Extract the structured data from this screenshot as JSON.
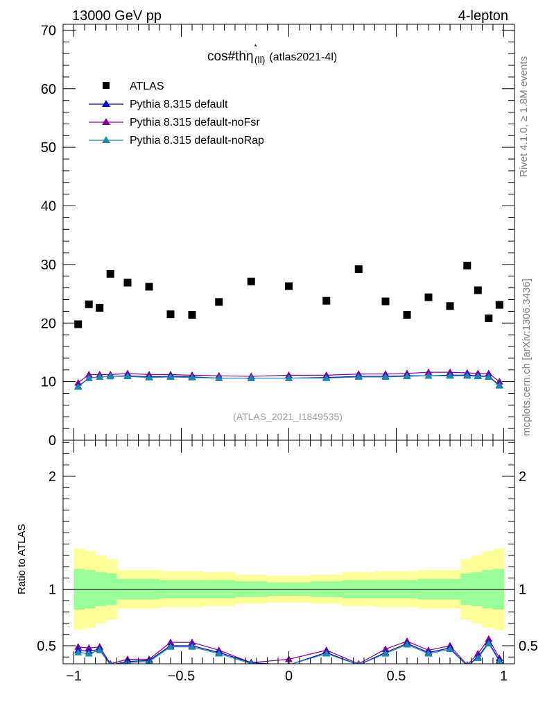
{
  "header": {
    "energy_label": "13000 GeV pp",
    "process_label": "4-lepton"
  },
  "plot_title": {
    "main": "cos#thη",
    "sup": "*",
    "sub": "(ll)",
    "suffix": "(atlas2021-4l)"
  },
  "watermark": "(ATLAS_2021_I1849535)",
  "side_labels": {
    "rivet": "Rivet 4.1.0, ≥ 1.8M events",
    "mcplots": "mcplots.cern.ch [arXiv:1306.3436]"
  },
  "colors": {
    "data": "#000000",
    "default": "#0000cc",
    "noFsr": "#8000a0",
    "noRap": "#1a8ab0",
    "band_inner": "#99ff99",
    "band_outer": "#ffff99"
  },
  "chart_data": [
    {
      "type": "scatter",
      "panel": "main",
      "xlim": [
        -1.05,
        1.05
      ],
      "ylim": [
        0,
        71
      ],
      "yticks": [
        0,
        10,
        20,
        30,
        40,
        50,
        60,
        70
      ],
      "ytick_labels": [
        "0",
        "10",
        "20",
        "30",
        "40",
        "50",
        "60",
        "70"
      ],
      "legend": {
        "placement": "top-left",
        "entries": [
          {
            "key": "data",
            "label": "ATLAS"
          },
          {
            "key": "default",
            "label": "Pythia 8.315 default"
          },
          {
            "key": "noFsr",
            "label": "Pythia 8.315 default-noFsr"
          },
          {
            "key": "noRap",
            "label": "Pythia 8.315 default-noRap"
          }
        ]
      },
      "x": [
        -0.98,
        -0.93,
        -0.88,
        -0.83,
        -0.75,
        -0.65,
        -0.55,
        -0.45,
        -0.325,
        -0.175,
        0.0,
        0.175,
        0.325,
        0.45,
        0.55,
        0.65,
        0.75,
        0.83,
        0.88,
        0.93,
        0.98
      ],
      "series": [
        {
          "key": "data",
          "name": "ATLAS",
          "values": [
            19.8,
            23.2,
            22.6,
            28.4,
            26.9,
            26.2,
            21.5,
            21.4,
            23.6,
            27.1,
            26.3,
            23.8,
            29.2,
            23.7,
            21.4,
            24.4,
            22.9,
            29.8,
            25.6,
            20.8,
            23.1
          ]
        },
        {
          "key": "default",
          "name": "Pythia 8.315 default",
          "values": [
            9.2,
            10.6,
            10.8,
            10.9,
            11.0,
            10.8,
            10.9,
            10.8,
            10.6,
            10.6,
            10.6,
            10.7,
            10.9,
            10.9,
            11.0,
            11.0,
            11.1,
            11.1,
            11.0,
            10.9,
            9.4
          ]
        },
        {
          "key": "noFsr",
          "name": "Pythia 8.315 default-noFsr",
          "values": [
            9.8,
            11.2,
            11.2,
            11.2,
            11.4,
            11.2,
            11.2,
            11.1,
            11.0,
            10.9,
            11.1,
            11.1,
            11.3,
            11.3,
            11.4,
            11.6,
            11.6,
            11.5,
            11.4,
            11.4,
            10.0
          ]
        },
        {
          "key": "noRap",
          "name": "Pythia 8.315 default-noRap",
          "values": [
            9.1,
            10.6,
            10.8,
            10.9,
            10.9,
            10.7,
            10.8,
            10.7,
            10.6,
            10.6,
            10.6,
            10.6,
            10.8,
            10.8,
            10.9,
            11.0,
            11.0,
            11.0,
            10.9,
            10.8,
            9.3
          ]
        }
      ]
    },
    {
      "type": "line",
      "panel": "ratio",
      "ylabel": "Ratio to ATLAS",
      "xlim": [
        -1.05,
        1.05
      ],
      "ylim": [
        0.34,
        2.32
      ],
      "xticks": [
        -1,
        -0.5,
        0,
        0.5,
        1
      ],
      "xtick_labels": [
        "−1",
        "−0.5",
        "0",
        "0.5",
        "1"
      ],
      "yticks": [
        0.5,
        1,
        2
      ],
      "ytick_labels": [
        "0.5",
        "1",
        "2"
      ],
      "reference_line": 1,
      "band_edges": [
        -1.0,
        -0.95,
        -0.9,
        -0.85,
        -0.8,
        -0.7,
        -0.6,
        -0.5,
        -0.4,
        -0.25,
        -0.1,
        0.1,
        0.25,
        0.4,
        0.5,
        0.6,
        0.7,
        0.8,
        0.85,
        0.9,
        0.95,
        1.0
      ],
      "band_inner": [
        0.18,
        0.17,
        0.15,
        0.14,
        0.09,
        0.09,
        0.08,
        0.08,
        0.08,
        0.07,
        0.06,
        0.07,
        0.08,
        0.08,
        0.08,
        0.09,
        0.09,
        0.14,
        0.15,
        0.17,
        0.18
      ],
      "band_outer": [
        0.36,
        0.34,
        0.3,
        0.27,
        0.17,
        0.17,
        0.16,
        0.16,
        0.15,
        0.13,
        0.12,
        0.13,
        0.15,
        0.16,
        0.16,
        0.17,
        0.17,
        0.27,
        0.3,
        0.34,
        0.36
      ],
      "x": [
        -0.98,
        -0.93,
        -0.88,
        -0.83,
        -0.75,
        -0.65,
        -0.55,
        -0.45,
        -0.325,
        -0.175,
        0.0,
        0.175,
        0.325,
        0.45,
        0.55,
        0.65,
        0.75,
        0.83,
        0.88,
        0.93,
        0.98
      ],
      "series": [
        {
          "key": "default",
          "name": "Pythia 8.315 default",
          "values": [
            0.46,
            0.45,
            0.47,
            0.33,
            0.36,
            0.37,
            0.5,
            0.5,
            0.44,
            0.35,
            0.33,
            0.44,
            0.33,
            0.44,
            0.52,
            0.44,
            0.48,
            0.32,
            0.4,
            0.53,
            0.37
          ]
        },
        {
          "key": "noFsr",
          "name": "Pythia 8.315 default-noFsr",
          "values": [
            0.49,
            0.48,
            0.49,
            0.34,
            0.38,
            0.38,
            0.53,
            0.53,
            0.46,
            0.35,
            0.38,
            0.46,
            0.34,
            0.47,
            0.54,
            0.46,
            0.5,
            0.33,
            0.43,
            0.56,
            0.39
          ]
        },
        {
          "key": "noRap",
          "name": "Pythia 8.315 default-noRap",
          "values": [
            0.44,
            0.43,
            0.46,
            0.33,
            0.35,
            0.36,
            0.49,
            0.49,
            0.43,
            0.34,
            0.33,
            0.43,
            0.33,
            0.43,
            0.51,
            0.43,
            0.47,
            0.32,
            0.39,
            0.52,
            0.36
          ]
        }
      ]
    }
  ]
}
